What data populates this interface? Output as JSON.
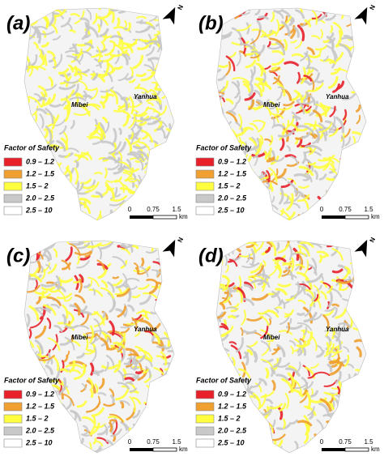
{
  "panels": [
    {
      "label": "(a)",
      "north": "N",
      "places": [
        "Mibei",
        "Yanhua"
      ],
      "legend_title": "Factor of Safety",
      "legend": [
        {
          "label": "0.9 – 1.2",
          "color": "#e8202a"
        },
        {
          "label": "1.2 – 1.5",
          "color": "#f0a030"
        },
        {
          "label": "1.5 – 2",
          "color": "#ffff40"
        },
        {
          "label": "2.0 – 2.5",
          "color": "#c8c8c8"
        },
        {
          "label": "2.5 – 10",
          "color": "#ffffff"
        }
      ],
      "scale": [
        "0",
        "0.75",
        "1.5",
        "km"
      ]
    },
    {
      "label": "(b)",
      "north": "N",
      "places": [
        "Mibei",
        "Yanhua"
      ],
      "legend_title": "Factor of Safety",
      "legend": [
        {
          "label": "0.9 – 1.2",
          "color": "#e8202a"
        },
        {
          "label": "1.2 – 1.5",
          "color": "#f0a030"
        },
        {
          "label": "1.5 – 2",
          "color": "#ffff40"
        },
        {
          "label": "2.0 – 2.5",
          "color": "#c8c8c8"
        },
        {
          "label": "2.5 – 10",
          "color": "#ffffff"
        }
      ],
      "scale": [
        "0",
        "0.75",
        "1.5",
        "km"
      ]
    },
    {
      "label": "(c)",
      "north": "N",
      "places": [
        "Mibei",
        "Yanhua"
      ],
      "legend_title": "Factor of Safety",
      "legend": [
        {
          "label": "0.9 – 1.2",
          "color": "#e8202a"
        },
        {
          "label": "1.2 – 1.5",
          "color": "#f0a030"
        },
        {
          "label": "1.5 – 2",
          "color": "#ffff40"
        },
        {
          "label": "2.0 – 2.5",
          "color": "#c8c8c8"
        },
        {
          "label": "2.5 – 10",
          "color": "#ffffff"
        }
      ],
      "scale": [
        "0",
        "0.75",
        "1.5",
        "km"
      ]
    },
    {
      "label": "(d)",
      "north": "N",
      "places": [
        "Mibei",
        "Yanhua"
      ],
      "legend_title": "Factor of Safety",
      "legend": [
        {
          "label": "0.9 – 1.2",
          "color": "#e8202a"
        },
        {
          "label": "1.2 – 1.5",
          "color": "#f0a030"
        },
        {
          "label": "1.5 – 2",
          "color": "#ffff40"
        },
        {
          "label": "2.0 – 2.5",
          "color": "#c8c8c8"
        },
        {
          "label": "2.5 – 10",
          "color": "#ffffff"
        }
      ],
      "scale": [
        "0",
        "0.75",
        "1.5",
        "km"
      ]
    }
  ]
}
